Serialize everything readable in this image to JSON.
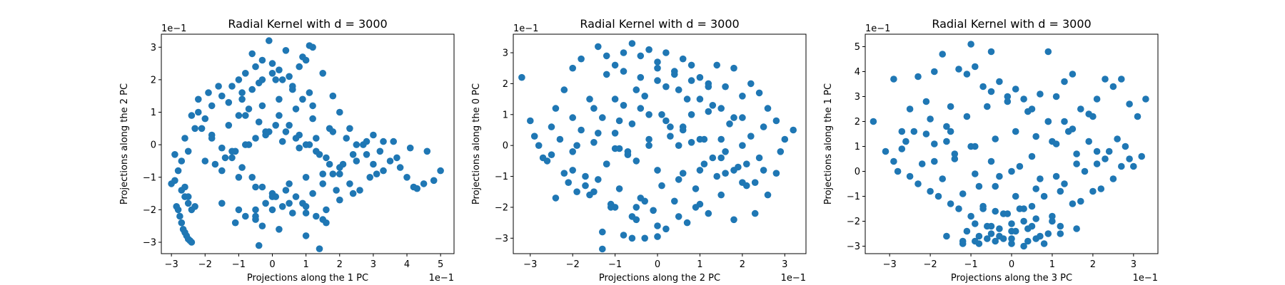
{
  "chart_data": [
    {
      "type": "scatter",
      "title": "Radial Kernel with d = 3000",
      "xlabel": "Projections along the 1 PC",
      "ylabel": "Projections along the 2 PC",
      "x_offset_label": "1e−1",
      "y_offset_label": "1e−1",
      "xlim": [
        -3.3,
        5.4
      ],
      "ylim": [
        -3.35,
        3.4
      ],
      "xticks": [
        -3,
        -2,
        -1,
        0,
        1,
        2,
        3,
        4,
        5
      ],
      "yticks": [
        -3,
        -2,
        -1,
        0,
        1,
        2,
        3
      ],
      "color": "#1f77b4",
      "grid": false,
      "x": [
        -3.0,
        -2.9,
        -2.85,
        -2.8,
        -2.75,
        -2.7,
        -2.65,
        -2.6,
        -2.55,
        -2.5,
        -2.45,
        -2.4,
        -2.8,
        -2.7,
        -2.6,
        -2.5,
        -2.9,
        -2.6,
        -2.3,
        -2.2,
        -2.5,
        -2.0,
        -1.8,
        -1.5,
        -1.2,
        -1.0,
        -0.8,
        -0.5,
        -0.3,
        0.0,
        0.2,
        0.5,
        0.8,
        1.0,
        1.2,
        1.5,
        1.8,
        2.0,
        2.3,
        2.5,
        2.8,
        3.0,
        3.3,
        3.5,
        3.8,
        4.0,
        4.2,
        4.5,
        4.8,
        5.0,
        -2.0,
        -1.5,
        -1.0,
        -0.5,
        0.0,
        0.5,
        1.0,
        1.5,
        2.0,
        2.5,
        -1.8,
        -1.3,
        -0.8,
        -0.3,
        0.2,
        0.7,
        1.2,
        1.7,
        2.2,
        -1.5,
        -1.0,
        -0.5,
        0.0,
        0.5,
        1.0,
        1.5,
        2.0,
        -1.2,
        -0.7,
        -0.2,
        0.3,
        0.8,
        1.3,
        1.8,
        -0.9,
        -0.4,
        0.1,
        0.6,
        1.1,
        -0.6,
        -0.1,
        0.4,
        0.9,
        -0.4,
        1.0,
        1.1,
        0.2,
        -0.3,
        1.4,
        -0.5,
        1.6,
        2.4,
        3.1,
        3.7,
        4.3,
        -2.2,
        -1.9,
        -1.6,
        -1.3,
        -1.0,
        -0.7,
        -0.4,
        -0.1,
        0.2,
        0.5,
        0.8,
        1.1,
        1.4,
        1.7,
        2.0,
        2.3,
        2.6,
        2.9,
        -2.4,
        -2.1,
        -1.8,
        -1.5,
        -1.2,
        -0.9,
        -0.6,
        -0.3,
        0.0,
        0.3,
        0.6,
        0.9,
        1.2,
        1.5,
        1.8,
        2.1,
        2.4,
        2.7,
        3.0,
        3.3,
        -1.1,
        -0.8,
        -0.5,
        -0.2,
        0.1,
        0.4,
        0.7,
        1.0,
        1.3,
        1.6,
        1.9,
        -1.7,
        -1.4,
        -1.1,
        -0.8,
        -0.5,
        -0.2,
        0.1,
        0.4,
        0.7,
        1.0,
        1.3,
        1.6,
        -0.9,
        -0.6,
        -0.3,
        0.0,
        0.3,
        0.6,
        0.9,
        1.2,
        -2.7,
        -2.6,
        -2.5,
        -2.4,
        -2.3,
        2.8,
        3.2,
        3.6,
        4.1,
        4.6
      ],
      "y": [
        -1.2,
        -1.1,
        -1.9,
        -2.0,
        -2.2,
        -2.4,
        -2.6,
        -2.7,
        -2.8,
        -2.9,
        -2.95,
        -3.0,
        -0.8,
        -0.5,
        -1.3,
        -1.6,
        -0.3,
        0.2,
        0.5,
        1.0,
        -0.2,
        0.8,
        1.2,
        1.5,
        1.8,
        2.0,
        2.2,
        2.4,
        2.6,
        2.5,
        2.3,
        2.1,
        2.4,
        2.6,
        3.0,
        2.2,
        1.5,
        1.0,
        0.5,
        0.0,
        -0.3,
        -0.6,
        -0.8,
        -0.5,
        -0.7,
        -1.0,
        -1.3,
        -1.2,
        -1.1,
        -0.8,
        -0.5,
        -0.8,
        -1.0,
        -1.3,
        -1.5,
        -1.2,
        -1.0,
        -0.9,
        -0.7,
        -0.5,
        0.3,
        0.6,
        0.9,
        1.2,
        1.4,
        1.1,
        0.8,
        0.5,
        0.2,
        -1.8,
        -2.0,
        -2.2,
        -2.0,
        -1.8,
        -2.1,
        -2.3,
        -1.7,
        -0.2,
        0.0,
        0.3,
        0.1,
        -0.1,
        0.2,
        0.4,
        1.6,
        1.9,
        2.0,
        1.8,
        1.6,
        2.8,
        3.2,
        2.9,
        2.7,
        -3.1,
        -2.8,
        3.05,
        -2.6,
        -2.5,
        -3.2,
        -2.3,
        -2.4,
        -1.5,
        -0.9,
        -0.4,
        -1.35,
        1.4,
        1.6,
        1.8,
        1.3,
        0.9,
        1.1,
        0.7,
        0.4,
        0.9,
        0.6,
        0.3,
        0.0,
        -0.3,
        -0.6,
        -0.9,
        -1.2,
        -1.4,
        -1.0,
        0.9,
        0.5,
        0.2,
        -0.1,
        -0.4,
        -0.7,
        -1.0,
        -1.3,
        -1.6,
        -1.9,
        -2.1,
        -1.8,
        -1.5,
        -1.2,
        -0.9,
        -0.6,
        -0.3,
        0.0,
        0.3,
        0.1,
        -2.4,
        -2.2,
        -2.0,
        -1.8,
        -1.6,
        -1.4,
        -1.6,
        -1.9,
        -2.2,
        -2.0,
        -1.4,
        -0.6,
        -0.4,
        -0.2,
        0.0,
        0.2,
        0.4,
        0.6,
        0.4,
        0.2,
        0.0,
        -0.2,
        -0.4,
        1.4,
        1.7,
        2.0,
        2.2,
        2.0,
        1.7,
        1.4,
        1.2,
        -1.4,
        -1.6,
        -1.8,
        -2.0,
        -1.9,
        0.1,
        -0.2,
        0.1,
        -0.1,
        -0.2
      ]
    },
    {
      "type": "scatter",
      "title": "Radial Kernel with d = 3000",
      "xlabel": "Projections along the 2 PC",
      "ylabel": "Projections along the 0 PC",
      "x_offset_label": "1e−1",
      "y_offset_label": "1e−1",
      "xlim": [
        -3.4,
        3.5
      ],
      "ylim": [
        -3.5,
        3.6
      ],
      "xticks": [
        -3,
        -2,
        -1,
        0,
        1,
        2,
        3
      ],
      "yticks": [
        -3,
        -2,
        -1,
        0,
        1,
        2,
        3
      ],
      "color": "#1f77b4",
      "grid": false,
      "x": [
        -3.2,
        -3.0,
        -2.8,
        -2.6,
        -2.4,
        -2.2,
        -2.0,
        -1.8,
        -1.6,
        -1.4,
        -1.2,
        -1.0,
        -0.8,
        -0.6,
        -0.4,
        -0.2,
        0.0,
        0.2,
        0.4,
        0.6,
        0.8,
        1.0,
        1.2,
        1.4,
        1.6,
        1.8,
        2.0,
        2.2,
        2.4,
        2.6,
        2.8,
        3.0,
        3.2,
        -2.5,
        -2.0,
        -1.5,
        -1.0,
        -0.5,
        0.0,
        0.5,
        1.0,
        1.5,
        2.0,
        2.5,
        -2.3,
        -1.8,
        -1.3,
        -0.8,
        -0.3,
        0.2,
        0.7,
        1.2,
        1.7,
        2.2,
        -2.1,
        -1.6,
        -1.1,
        -0.6,
        -0.1,
        0.4,
        0.9,
        1.4,
        1.9,
        2.4,
        -1.9,
        -1.4,
        -0.9,
        -0.4,
        0.1,
        0.6,
        1.1,
        1.6,
        2.1,
        -1.7,
        -1.2,
        -0.7,
        -0.2,
        0.3,
        0.8,
        1.3,
        1.8,
        -1.3,
        -0.8,
        -0.3,
        0.2,
        0.7,
        1.2,
        -1.3,
        0.0,
        -0.6,
        1.8,
        2.3,
        -2.7,
        -2.2,
        -1.7,
        -1.2,
        -0.7,
        -0.2,
        0.3,
        0.8,
        1.3,
        1.8,
        2.3,
        2.8,
        -2.5,
        -2.0,
        -1.5,
        -1.0,
        -0.5,
        0.0,
        0.5,
        1.0,
        1.5,
        2.0,
        2.5,
        -2.4,
        -1.9,
        -1.4,
        -0.9,
        -0.4,
        0.1,
        0.6,
        1.1,
        1.6,
        2.1,
        2.6,
        -1.0,
        -0.6,
        -0.2,
        0.2,
        0.6,
        1.0,
        -2.0,
        -1.5,
        -1.0,
        -0.5,
        0.0,
        0.5,
        1.0,
        1.5,
        2.0,
        -1.2,
        -0.8,
        -0.4,
        0.0,
        0.4,
        0.8,
        1.2,
        -0.5,
        -0.3,
        -1.1,
        0.9,
        2.9,
        -2.9,
        -0.9,
        0.5,
        1.5
      ],
      "y": [
        2.2,
        0.8,
        0.0,
        -0.5,
        1.2,
        1.8,
        2.5,
        2.8,
        1.5,
        3.2,
        2.9,
        2.6,
        3.0,
        3.3,
        2.9,
        3.1,
        2.7,
        3.0,
        2.4,
        2.8,
        2.6,
        2.2,
        2.0,
        2.6,
        1.9,
        2.5,
        1.6,
        2.0,
        1.7,
        1.2,
        0.8,
        0.2,
        0.5,
        -0.3,
        -0.8,
        -1.5,
        -2.0,
        -2.4,
        -2.6,
        -2.3,
        -1.9,
        -1.6,
        -1.2,
        -0.8,
        0.2,
        0.5,
        0.9,
        1.3,
        1.6,
        1.9,
        1.5,
        1.1,
        0.7,
        0.3,
        -1.2,
        -1.6,
        -2.0,
        -2.3,
        -2.1,
        -1.8,
        -1.4,
        -1.0,
        -0.7,
        -0.4,
        0.0,
        0.4,
        0.8,
        1.2,
        1.0,
        0.6,
        0.2,
        -0.2,
        -0.6,
        -1.0,
        -0.6,
        -0.2,
        0.2,
        0.6,
        1.0,
        1.3,
        0.9,
        -2.8,
        -2.9,
        -3.0,
        -2.7,
        -2.5,
        -2.2,
        -3.35,
        -2.95,
        -3.0,
        -2.4,
        -2.2,
        -0.4,
        -0.9,
        -1.3,
        -0.6,
        -0.3,
        0.0,
        0.3,
        0.1,
        -0.4,
        -0.8,
        -1.2,
        -0.9,
        0.6,
        0.9,
        1.2,
        1.5,
        1.8,
        2.1,
        1.8,
        1.5,
        1.2,
        0.9,
        0.6,
        -1.7,
        -1.5,
        -1.1,
        -1.4,
        -1.7,
        -1.3,
        -0.9,
        -0.6,
        -0.9,
        -1.3,
        -1.6,
        0.4,
        0.7,
        1.0,
        0.8,
        0.5,
        0.2,
        -0.2,
        0.1,
        -0.1,
        -0.5,
        -0.8,
        -1.1,
        -0.8,
        -0.4,
        0.0,
        2.3,
        2.4,
        2.2,
        2.5,
        2.3,
        2.1,
        1.9,
        -2.0,
        -1.8,
        -1.9,
        -2.0,
        -0.2,
        0.3,
        -0.1,
        0.0,
        0.2
      ]
    },
    {
      "type": "scatter",
      "title": "Radial Kernel with d = 3000",
      "xlabel": "Projections along the 3 PC",
      "ylabel": "Projections along the 1 PC",
      "x_offset_label": "1e−1",
      "y_offset_label": "1e−1",
      "xlim": [
        -3.6,
        3.6
      ],
      "ylim": [
        -3.3,
        5.5
      ],
      "xticks": [
        -3,
        -2,
        -1,
        0,
        1,
        2,
        3
      ],
      "yticks": [
        -3,
        -2,
        -1,
        0,
        1,
        2,
        3,
        4,
        5
      ],
      "color": "#1f77b4",
      "grid": false,
      "x": [
        -3.4,
        -3.1,
        -2.9,
        -2.7,
        -2.5,
        -2.3,
        -2.1,
        -1.9,
        -1.7,
        -1.5,
        -1.3,
        -1.1,
        -0.9,
        -0.7,
        -0.5,
        -0.3,
        -0.1,
        0.1,
        0.3,
        0.5,
        0.7,
        0.9,
        1.1,
        1.3,
        1.5,
        1.7,
        1.9,
        2.1,
        2.3,
        2.5,
        2.7,
        2.9,
        3.1,
        3.3,
        -1.0,
        -0.5,
        0.9,
        -1.6,
        1.3,
        -2.9,
        -2.5,
        -2.0,
        -1.5,
        -1.0,
        -0.5,
        0.0,
        0.5,
        1.0,
        1.5,
        2.0,
        2.5,
        3.0,
        -2.7,
        -2.2,
        -1.7,
        -1.2,
        -0.7,
        -0.2,
        0.3,
        0.8,
        1.3,
        1.8,
        2.3,
        2.8,
        -2.4,
        -1.9,
        -1.4,
        -0.9,
        -0.4,
        0.1,
        0.6,
        1.1,
        1.6,
        2.1,
        2.6,
        -2.0,
        -1.5,
        -1.0,
        -0.5,
        0.0,
        0.5,
        1.0,
        1.5,
        2.0,
        -1.6,
        -1.2,
        -0.8,
        -0.4,
        0.0,
        0.4,
        0.8,
        1.2,
        1.6,
        -1.2,
        -0.9,
        -0.6,
        -0.3,
        0.0,
        0.3,
        0.6,
        0.9,
        1.2,
        -1.1,
        -0.8,
        -0.5,
        -0.2,
        0.1,
        0.4,
        0.7,
        1.0,
        -0.9,
        -0.6,
        -0.3,
        0.0,
        0.3,
        0.6,
        -0.7,
        -0.4,
        -0.1,
        0.2,
        0.5,
        -2.8,
        -2.3,
        -1.8,
        -1.3,
        -0.8,
        -0.3,
        0.2,
        0.7,
        1.2,
        1.7,
        2.2,
        2.7,
        3.2,
        -2.6,
        -2.1,
        -1.6,
        -1.1,
        -0.6,
        -0.1,
        0.4,
        0.9,
        1.4,
        1.9,
        2.4,
        2.9,
        -1.9,
        -1.4,
        -0.9,
        -0.4,
        0.1,
        0.6,
        1.1,
        1.6,
        2.1
      ],
      "y": [
        2.0,
        0.8,
        3.7,
        1.6,
        2.5,
        3.8,
        2.8,
        4.0,
        4.7,
        2.6,
        4.1,
        3.9,
        4.2,
        3.4,
        3.2,
        3.6,
        3.0,
        3.3,
        2.9,
        2.5,
        3.1,
        4.8,
        3.0,
        3.6,
        3.9,
        2.5,
        2.3,
        2.9,
        3.7,
        3.4,
        3.7,
        2.7,
        2.2,
        2.9,
        5.1,
        4.8,
        2.0,
        1.2,
        2.0,
        0.4,
        -0.2,
        -0.8,
        -1.3,
        -1.8,
        -2.2,
        -2.4,
        -2.2,
        -1.8,
        -1.3,
        -0.8,
        -0.3,
        0.2,
        0.9,
        0.3,
        -0.3,
        -0.9,
        -1.4,
        -1.7,
        -1.5,
        -1.0,
        -0.5,
        0.0,
        0.5,
        1.0,
        1.6,
        1.1,
        0.5,
        -0.1,
        -0.6,
        -1.0,
        -0.7,
        -0.2,
        0.3,
        0.8,
        1.3,
        2.1,
        1.6,
        1.0,
        0.4,
        0.0,
        0.6,
        1.2,
        1.7,
        2.2,
        -2.6,
        -2.8,
        -2.9,
        -2.8,
        -2.7,
        -2.8,
        -2.9,
        -2.5,
        -2.3,
        -2.9,
        -2.8,
        -2.7,
        -2.6,
        -2.9,
        -3.0,
        -2.7,
        -2.5,
        -2.2,
        -2.4,
        -2.6,
        -2.5,
        -2.7,
        -2.4,
        -2.3,
        -2.6,
        -2.0,
        -2.1,
        -2.2,
        -2.3,
        -2.1,
        -2.0,
        -1.9,
        -1.5,
        -1.6,
        -1.7,
        -1.5,
        -1.4,
        0.0,
        -0.5,
        -1.0,
        -1.5,
        -0.6,
        -0.2,
        0.2,
        -0.3,
        -0.8,
        -1.2,
        -0.7,
        0.2,
        0.6,
        1.2,
        1.5,
        1.8,
        2.2,
        2.6,
        2.8,
        2.4,
        2.0,
        1.6,
        1.2,
        0.8,
        0.5,
        0.4,
        0.7,
        1.0,
        1.3,
        1.6,
        1.4,
        1.1,
        0.7,
        0.3
      ]
    }
  ]
}
